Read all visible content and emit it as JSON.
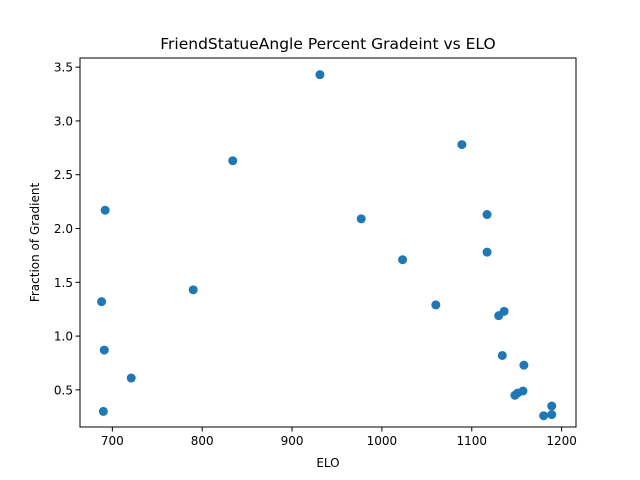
{
  "chart_data": {
    "type": "scatter",
    "title": "FriendStatueAngle Percent Gradeint vs ELO",
    "xlabel": "ELO",
    "ylabel": "Fraction of Gradient",
    "xlim": [
      664,
      1216
    ],
    "ylim": [
      0.155,
      3.585
    ],
    "xticks": [
      700,
      800,
      900,
      1000,
      1100,
      1200
    ],
    "yticks": [
      0.5,
      1.0,
      1.5,
      2.0,
      2.5,
      3.0,
      3.5
    ],
    "xtick_labels": [
      "700",
      "800",
      "900",
      "1000",
      "1100",
      "1200"
    ],
    "ytick_labels": [
      "0.5",
      "1.0",
      "1.5",
      "2.0",
      "2.5",
      "3.0",
      "3.5"
    ],
    "grid": false,
    "marker_color": "#1f77b4",
    "points": [
      {
        "x": 688,
        "y": 1.32
      },
      {
        "x": 690,
        "y": 0.3
      },
      {
        "x": 691,
        "y": 0.87
      },
      {
        "x": 692,
        "y": 2.17
      },
      {
        "x": 721,
        "y": 0.61
      },
      {
        "x": 790,
        "y": 1.43
      },
      {
        "x": 834,
        "y": 2.63
      },
      {
        "x": 931,
        "y": 3.43
      },
      {
        "x": 977,
        "y": 2.09
      },
      {
        "x": 1023,
        "y": 1.71
      },
      {
        "x": 1060,
        "y": 1.29
      },
      {
        "x": 1089,
        "y": 2.78
      },
      {
        "x": 1117,
        "y": 2.13
      },
      {
        "x": 1117,
        "y": 1.78
      },
      {
        "x": 1130,
        "y": 1.19
      },
      {
        "x": 1136,
        "y": 1.23
      },
      {
        "x": 1134,
        "y": 0.82
      },
      {
        "x": 1158,
        "y": 0.73
      },
      {
        "x": 1148,
        "y": 0.45
      },
      {
        "x": 1151,
        "y": 0.47
      },
      {
        "x": 1157,
        "y": 0.49
      },
      {
        "x": 1180,
        "y": 0.26
      },
      {
        "x": 1189,
        "y": 0.35
      },
      {
        "x": 1189,
        "y": 0.27
      }
    ]
  }
}
